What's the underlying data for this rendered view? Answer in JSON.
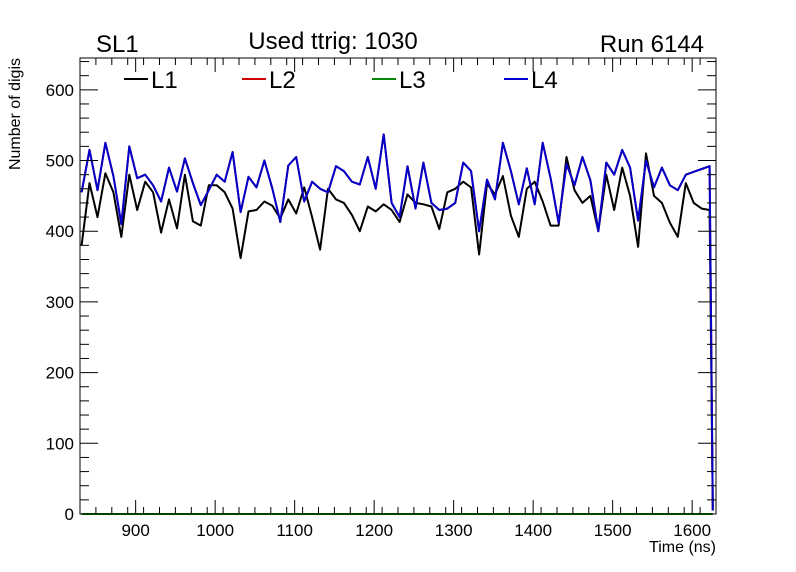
{
  "chart_data": {
    "type": "line",
    "title_left": "SL1",
    "title_center": "Used ttrig: 1030",
    "title_right": "Run 6144",
    "xlabel": "Time (ns)",
    "ylabel": "Number of digis",
    "xlim": [
      830,
      1630
    ],
    "ylim": [
      0,
      645
    ],
    "xticks": [
      900,
      1000,
      1100,
      1200,
      1300,
      1400,
      1500,
      1600
    ],
    "yticks": [
      0,
      100,
      200,
      300,
      400,
      500,
      600
    ],
    "x": [
      832,
      842,
      852,
      862,
      872,
      882,
      892,
      902,
      912,
      922,
      932,
      942,
      952,
      962,
      972,
      982,
      992,
      1002,
      1012,
      1022,
      1032,
      1042,
      1052,
      1062,
      1072,
      1082,
      1092,
      1102,
      1112,
      1122,
      1132,
      1142,
      1152,
      1162,
      1172,
      1182,
      1192,
      1202,
      1212,
      1222,
      1232,
      1242,
      1252,
      1262,
      1272,
      1282,
      1292,
      1302,
      1312,
      1322,
      1332,
      1342,
      1352,
      1362,
      1372,
      1382,
      1392,
      1402,
      1412,
      1422,
      1432,
      1442,
      1452,
      1462,
      1472,
      1482,
      1492,
      1502,
      1512,
      1522,
      1532,
      1542,
      1552,
      1562,
      1572,
      1582,
      1592,
      1602,
      1612,
      1622,
      1626
    ],
    "series": [
      {
        "name": "L1",
        "color": "#000000",
        "values": [
          380,
          468,
          420,
          482,
          455,
          392,
          480,
          430,
          470,
          455,
          398,
          445,
          404,
          480,
          414,
          408,
          465,
          465,
          455,
          432,
          362,
          428,
          430,
          442,
          436,
          418,
          445,
          425,
          462,
          420,
          374,
          460,
          445,
          440,
          423,
          400,
          435,
          428,
          438,
          430,
          413,
          452,
          440,
          438,
          435,
          403,
          455,
          460,
          470,
          462,
          367,
          467,
          452,
          478,
          422,
          392,
          460,
          470,
          442,
          408,
          408,
          505,
          458,
          440,
          450,
          400,
          480,
          430,
          490,
          450,
          378,
          510,
          450,
          440,
          412,
          392,
          468,
          440,
          432,
          430,
          5
        ]
      },
      {
        "name": "L2",
        "color": "#cc0000",
        "values": [
          455,
          515,
          458,
          525,
          478,
          410,
          520,
          475,
          480,
          465,
          442,
          490,
          456,
          503,
          468,
          437,
          458,
          480,
          470,
          512,
          427,
          477,
          462,
          500,
          460,
          413,
          493,
          505,
          442,
          470,
          460,
          455,
          492,
          485,
          470,
          466,
          505,
          460,
          537,
          440,
          420,
          492,
          432,
          497,
          440,
          430,
          432,
          440,
          497,
          485,
          400,
          473,
          445,
          525,
          485,
          438,
          489,
          438,
          525,
          475,
          412,
          495,
          465,
          505,
          472,
          400,
          497,
          480,
          515,
          490,
          415,
          500,
          462,
          490,
          465,
          458,
          480,
          484,
          488,
          492,
          5
        ]
      },
      {
        "name": "L3",
        "color": "#008800",
        "values": [
          0,
          0,
          0,
          0,
          0,
          0,
          0,
          0,
          0,
          0,
          0,
          0,
          0,
          0,
          0,
          0,
          0,
          0,
          0,
          0,
          0,
          0,
          0,
          0,
          0,
          0,
          0,
          0,
          0,
          0,
          0,
          0,
          0,
          0,
          0,
          0,
          0,
          0,
          0,
          0,
          0,
          0,
          0,
          0,
          0,
          0,
          0,
          0,
          0,
          0,
          0,
          0,
          0,
          0,
          0,
          0,
          0,
          0,
          0,
          0,
          0,
          0,
          0,
          0,
          0,
          0,
          0,
          0,
          0,
          0,
          0,
          0,
          0,
          0,
          0,
          0,
          0,
          0,
          0,
          0,
          0
        ]
      },
      {
        "name": "L4",
        "color": "#0000cc",
        "values": [
          455,
          515,
          458,
          525,
          478,
          410,
          520,
          475,
          480,
          465,
          442,
          490,
          456,
          503,
          468,
          437,
          458,
          480,
          470,
          512,
          427,
          477,
          462,
          500,
          460,
          413,
          493,
          505,
          442,
          470,
          460,
          455,
          492,
          485,
          470,
          466,
          505,
          460,
          537,
          440,
          420,
          492,
          432,
          497,
          440,
          430,
          432,
          440,
          497,
          485,
          400,
          473,
          445,
          525,
          485,
          438,
          489,
          438,
          525,
          475,
          412,
          495,
          465,
          505,
          472,
          400,
          497,
          480,
          515,
          490,
          415,
          500,
          462,
          490,
          465,
          458,
          480,
          484,
          488,
          492,
          5
        ]
      }
    ],
    "legend_position": "top-left, horizontal"
  }
}
